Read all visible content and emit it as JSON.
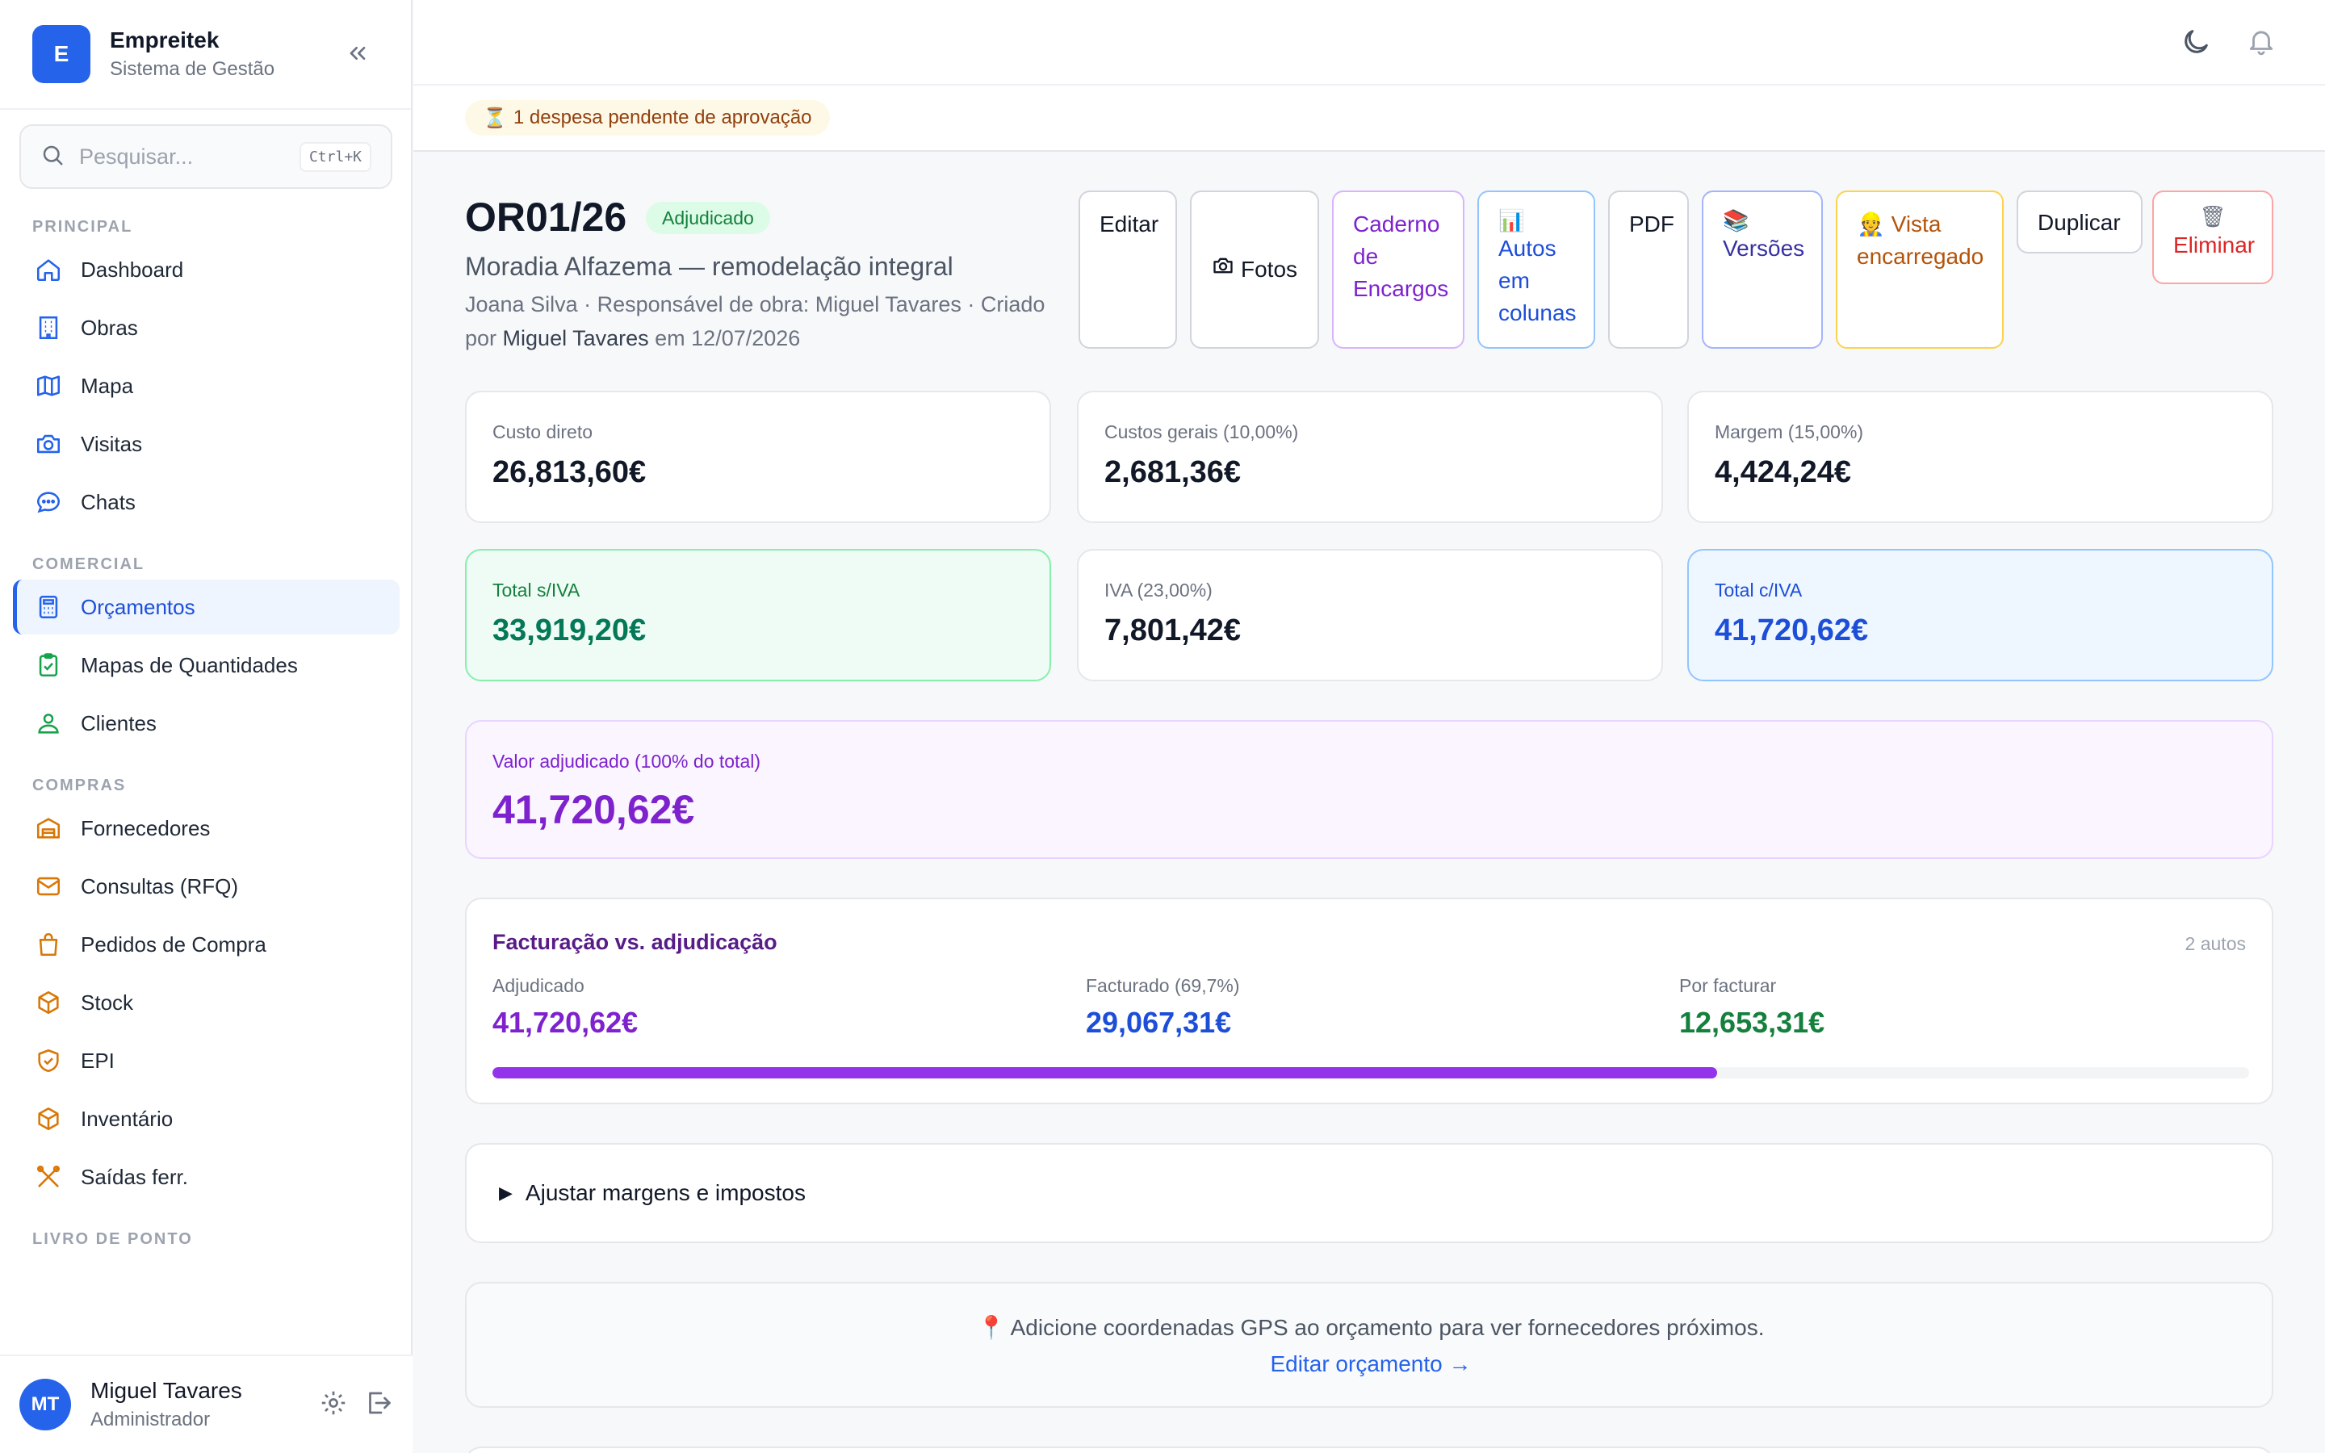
{
  "app": {
    "logo_letter": "E",
    "name": "Empreitek",
    "subtitle": "Sistema de Gestão"
  },
  "search": {
    "placeholder": "Pesquisar...",
    "shortcut": "Ctrl+K"
  },
  "sidebar": {
    "sections": [
      {
        "title": "PRINCIPAL",
        "items": [
          {
            "label": "Dashboard",
            "icon": "home-icon"
          },
          {
            "label": "Obras",
            "icon": "building-icon"
          },
          {
            "label": "Mapa",
            "icon": "map-icon"
          },
          {
            "label": "Visitas",
            "icon": "camera-icon"
          },
          {
            "label": "Chats",
            "icon": "chat-icon"
          }
        ]
      },
      {
        "title": "COMERCIAL",
        "items": [
          {
            "label": "Orçamentos",
            "icon": "calculator-icon",
            "active": true
          },
          {
            "label": "Mapas de Quantidades",
            "icon": "clipboard-icon"
          },
          {
            "label": "Clientes",
            "icon": "users-icon"
          }
        ]
      },
      {
        "title": "COMPRAS",
        "items": [
          {
            "label": "Fornecedores",
            "icon": "warehouse-icon"
          },
          {
            "label": "Consultas (RFQ)",
            "icon": "mail-icon"
          },
          {
            "label": "Pedidos de Compra",
            "icon": "bag-icon"
          },
          {
            "label": "Stock",
            "icon": "box-icon"
          },
          {
            "label": "EPI",
            "icon": "shield-icon"
          },
          {
            "label": "Inventário",
            "icon": "box-icon"
          },
          {
            "label": "Saídas ferr.",
            "icon": "tools-icon"
          }
        ]
      },
      {
        "title": "LIVRO DE PONTO",
        "items": []
      }
    ]
  },
  "user": {
    "initials": "MT",
    "name": "Miguel Tavares",
    "role": "Administrador"
  },
  "alert": {
    "icon": "⏳",
    "text": "1 despesa pendente de aprovação"
  },
  "budget": {
    "code": "OR01/26",
    "status": "Adjudicado",
    "title": "Moradia Alfazema — remodelação integral",
    "meta_client": "Joana Silva · Responsável de obra: Miguel Tavares · Criado por",
    "meta_author": "Miguel Tavares",
    "meta_date": "em 12/07/2026"
  },
  "actions": {
    "edit": "Editar",
    "photos": "Fotos",
    "specs": "Caderno de Encargos",
    "autos_icon": "📊",
    "autos": "Autos em colunas",
    "pdf": "PDF",
    "versions_icon": "📚",
    "versions": "Versões",
    "foreman_icon": "👷",
    "foreman": "Vista encarregado",
    "duplicate": "Duplicar",
    "delete_icon": "🗑",
    "delete": "Eliminar"
  },
  "summary": {
    "direct": {
      "label": "Custo direto",
      "value": "26,813,60€"
    },
    "overhead": {
      "label": "Custos gerais (10,00%)",
      "value": "2,681,36€"
    },
    "margin": {
      "label": "Margem (15,00%)",
      "value": "4,424,24€"
    },
    "subtotal": {
      "label": "Total s/IVA",
      "value": "33,919,20€"
    },
    "vat": {
      "label": "IVA (23,00%)",
      "value": "7,801,42€"
    },
    "total": {
      "label": "Total c/IVA",
      "value": "41,720,62€"
    }
  },
  "awarded": {
    "label": "Valor adjudicado (100% do total)",
    "value": "41,720,62€"
  },
  "billing": {
    "title": "Facturação vs. adjudicação",
    "count": "2 autos",
    "awarded_label": "Adjudicado",
    "awarded_value": "41,720,62€",
    "billed_label": "Facturado (69,7%)",
    "billed_value": "29,067,31€",
    "remaining_label": "Por facturar",
    "remaining_value": "12,653,31€",
    "progress": 0.697
  },
  "adjust": {
    "label": "Ajustar margens e impostos"
  },
  "gps": {
    "icon": "📍",
    "text": "Adicione coordenadas GPS ao orçamento para ver fornecedores próximos.",
    "link": "Editar orçamento →"
  },
  "colors": {
    "accent": "#2563eb",
    "purple": "#7e22ce",
    "green": "#15803d"
  }
}
